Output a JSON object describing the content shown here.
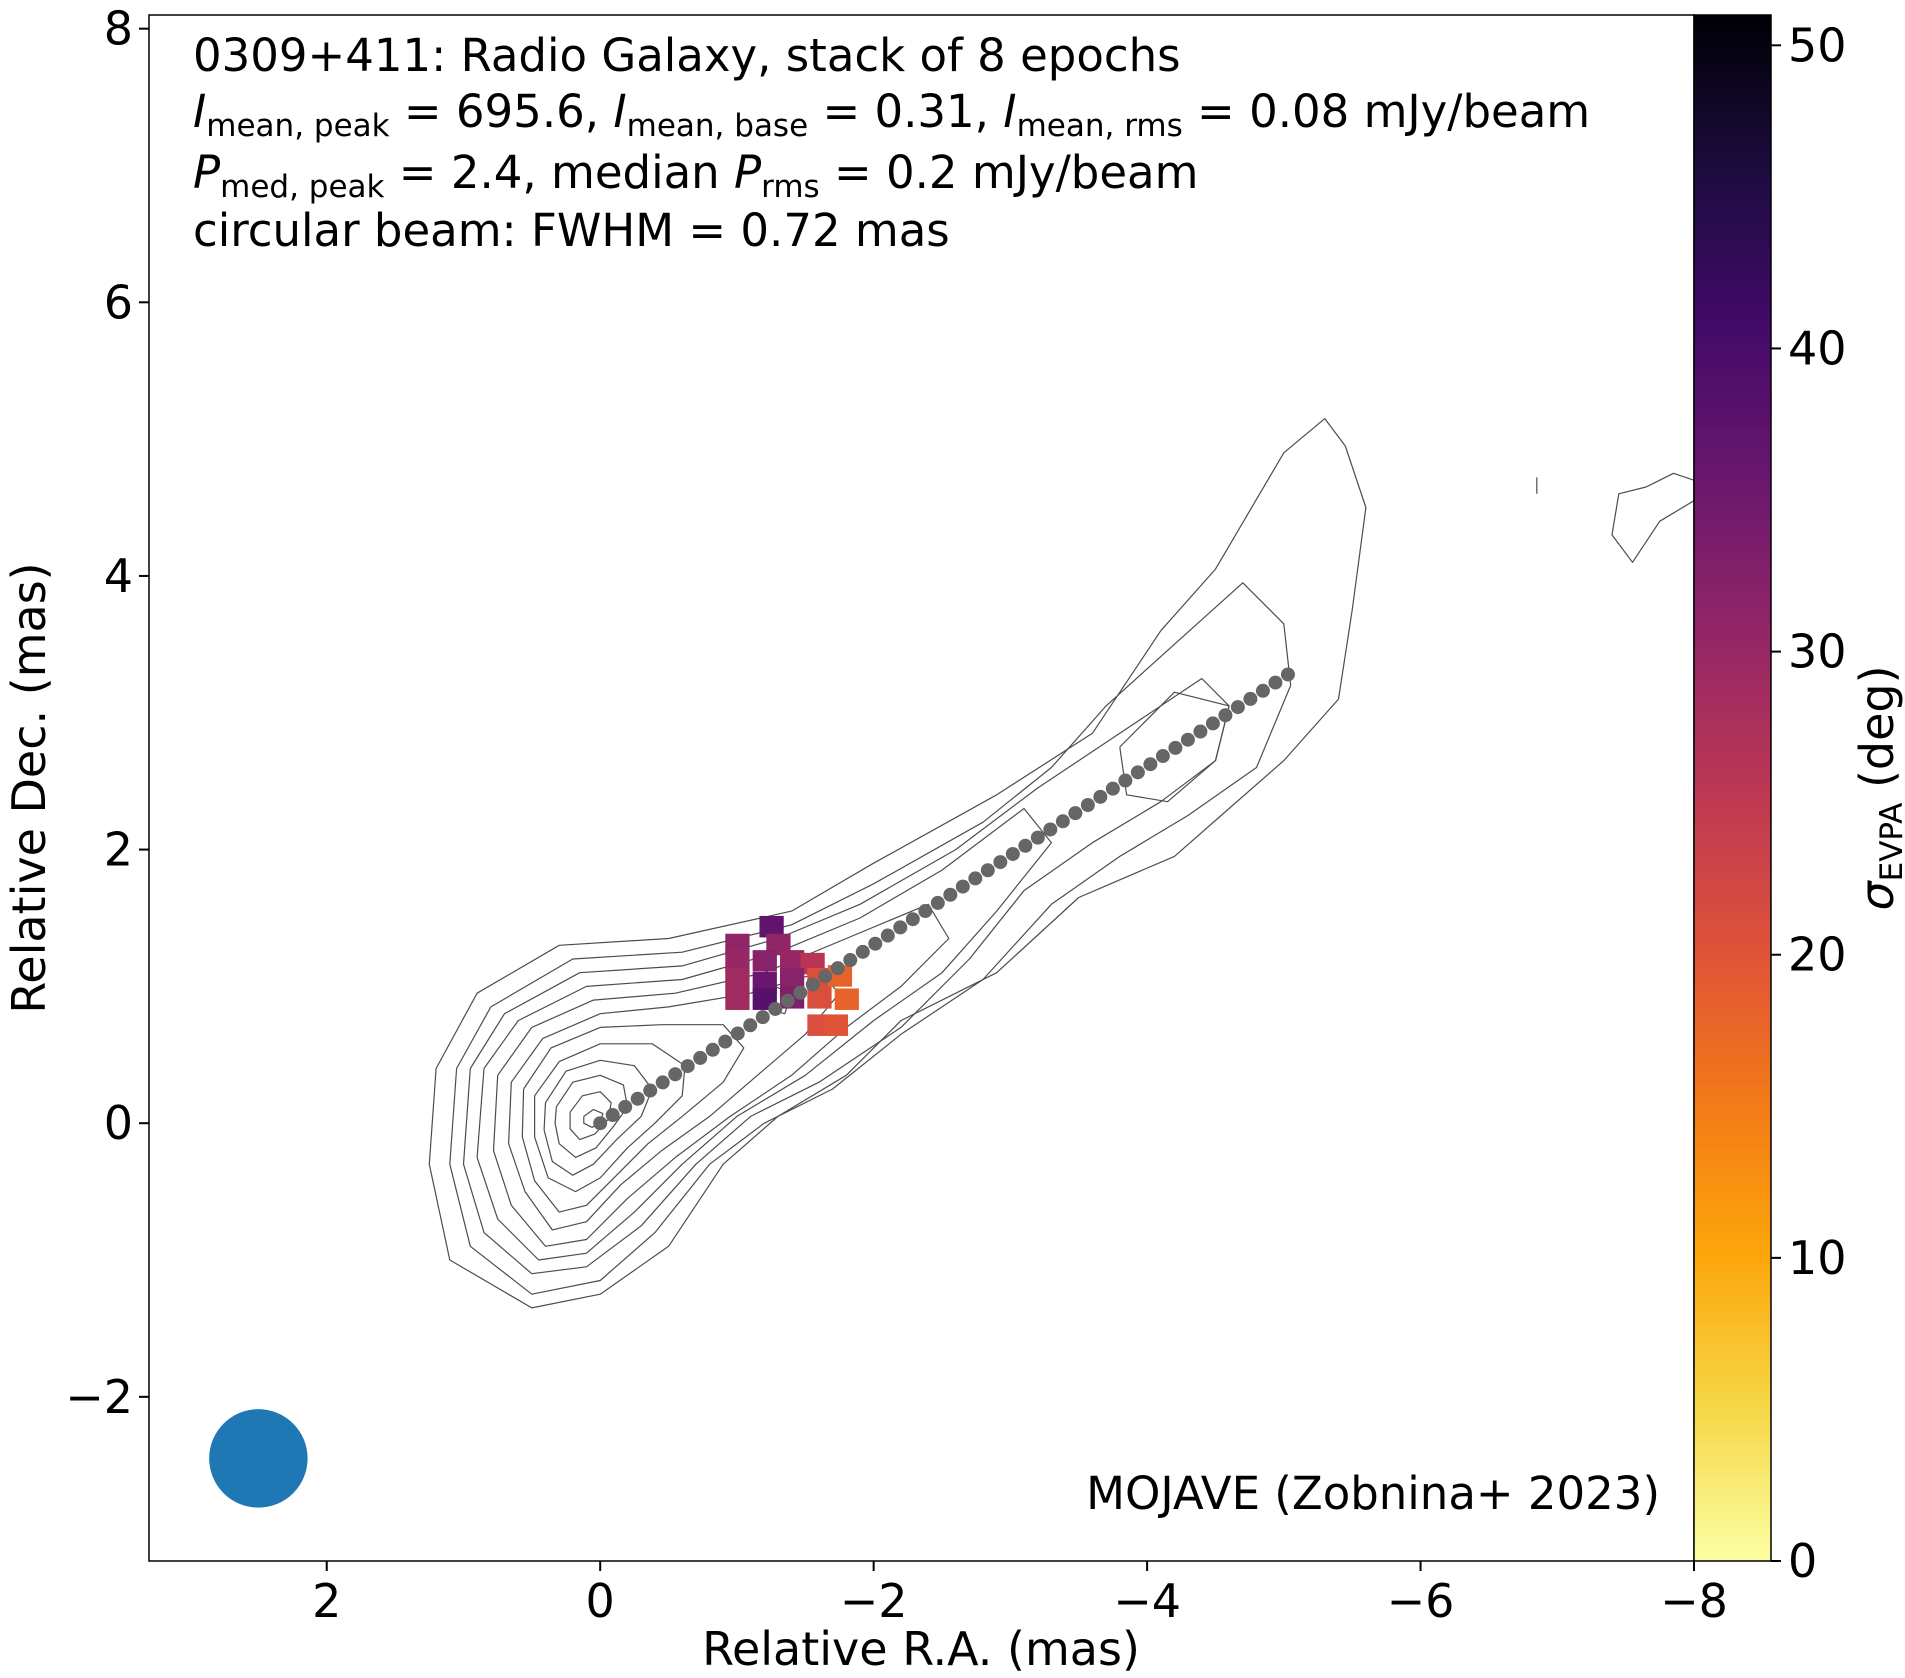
{
  "chart_data": {
    "type": "contour+image",
    "title_lines": [
      "0309+411: Radio Galaxy, stack of 8 epochs",
      {
        "parts": [
          {
            "sym": "I",
            "sub": "mean, peak",
            "rest": " = 695.6, "
          },
          {
            "sym": "I",
            "sub": "mean, base",
            "rest": " = 0.31, "
          },
          {
            "sym": "I",
            "sub": "mean, rms",
            "rest": " = 0.08 mJy/beam"
          }
        ]
      },
      {
        "parts": [
          {
            "sym": "P",
            "sub": "med, peak",
            "rest": " = 2.4, median "
          },
          {
            "sym": "P",
            "sub": "rms",
            "rest": " = 0.2 mJy/beam"
          }
        ]
      },
      "circular beam: FWHM = 0.72 mas"
    ],
    "credit": "MOJAVE (Zobnina+ 2023)",
    "xlabel": "Relative R.A. (mas)",
    "ylabel": "Relative Dec. (mas)",
    "xlim": [
      3.3,
      -8.0
    ],
    "ylim": [
      -3.2,
      8.1
    ],
    "x_ticks": [
      2,
      0,
      -2,
      -4,
      -6,
      -8
    ],
    "y_ticks": [
      -2,
      0,
      2,
      4,
      6,
      8
    ],
    "x_tick_labels": [
      "2",
      "0",
      "−2",
      "−4",
      "−6",
      "−8"
    ],
    "y_tick_labels": [
      "−2",
      "0",
      "2",
      "4",
      "6",
      "8"
    ],
    "colorbar": {
      "label_symbol": "σ",
      "label_sub": "EVPA",
      "label_rest": " (deg)",
      "range": [
        0,
        51
      ],
      "ticks": [
        0,
        10,
        20,
        30,
        40,
        50
      ],
      "tick_labels": [
        "0",
        "10",
        "20",
        "30",
        "40",
        "50"
      ],
      "colormap": "inferno_r",
      "stops": [
        "#fcffa4",
        "#f6d746",
        "#fca50a",
        "#f37819",
        "#dd513a",
        "#bc3754",
        "#932667",
        "#6a176e",
        "#420a68",
        "#1c0c3f",
        "#000004"
      ]
    },
    "ridge_line": {
      "color": "#666666",
      "start": [
        0,
        0
      ],
      "end": [
        -5.03,
        3.28
      ],
      "n_points": 56
    },
    "beam": {
      "ra": 2.5,
      "dec": -2.45,
      "diameter": 0.72,
      "color": "#1f77b4"
    },
    "evpa_pixels": [
      {
        "ra": -1.25,
        "dec": 1.44,
        "sigma": 37
      },
      {
        "ra": -1.0,
        "dec": 1.31,
        "sigma": 31
      },
      {
        "ra": -1.3,
        "dec": 1.31,
        "sigma": 31
      },
      {
        "ra": -1.0,
        "dec": 1.19,
        "sigma": 30
      },
      {
        "ra": -1.2,
        "dec": 1.19,
        "sigma": 32
      },
      {
        "ra": -1.4,
        "dec": 1.19,
        "sigma": 30
      },
      {
        "ra": -1.55,
        "dec": 1.17,
        "sigma": 26
      },
      {
        "ra": -1.0,
        "dec": 1.06,
        "sigma": 29
      },
      {
        "ra": -1.2,
        "dec": 1.03,
        "sigma": 36
      },
      {
        "ra": -1.4,
        "dec": 1.06,
        "sigma": 32
      },
      {
        "ra": -1.6,
        "dec": 1.06,
        "sigma": 21
      },
      {
        "ra": -1.75,
        "dec": 1.08,
        "sigma": 18
      },
      {
        "ra": -1.0,
        "dec": 0.91,
        "sigma": 29
      },
      {
        "ra": -1.2,
        "dec": 0.91,
        "sigma": 38
      },
      {
        "ra": -1.4,
        "dec": 0.92,
        "sigma": 33
      },
      {
        "ra": -1.6,
        "dec": 0.92,
        "sigma": 21
      },
      {
        "ra": -1.8,
        "dec": 0.91,
        "sigma": 18
      },
      {
        "ra": -1.6,
        "dec": 0.72,
        "sigma": 21
      },
      {
        "ra": -1.72,
        "dec": 0.72,
        "sigma": 20
      }
    ],
    "contours": [
      [
        [
          1.2,
          0.4
        ],
        [
          0.9,
          0.95
        ],
        [
          0.3,
          1.3
        ],
        [
          -0.5,
          1.35
        ],
        [
          -1.4,
          1.55
        ],
        [
          -2.0,
          1.9
        ],
        [
          -2.9,
          2.4
        ],
        [
          -3.6,
          2.85
        ],
        [
          -4.1,
          3.6
        ],
        [
          -4.5,
          4.05
        ],
        [
          -5.0,
          4.9
        ],
        [
          -5.3,
          5.15
        ],
        [
          -5.45,
          4.95
        ],
        [
          -5.6,
          4.5
        ],
        [
          -5.5,
          3.75
        ],
        [
          -5.4,
          3.1
        ],
        [
          -5.0,
          2.65
        ],
        [
          -4.6,
          2.3
        ],
        [
          -4.2,
          1.95
        ],
        [
          -3.5,
          1.65
        ],
        [
          -2.9,
          1.1
        ],
        [
          -2.2,
          0.75
        ],
        [
          -1.8,
          0.35
        ],
        [
          -1.3,
          0.05
        ],
        [
          -0.9,
          -0.3
        ],
        [
          -0.5,
          -0.9
        ],
        [
          0.0,
          -1.25
        ],
        [
          0.5,
          -1.35
        ],
        [
          1.1,
          -1.0
        ],
        [
          1.25,
          -0.3
        ],
        [
          1.2,
          0.4
        ]
      ],
      [
        [
          1.05,
          0.4
        ],
        [
          0.8,
          0.85
        ],
        [
          0.2,
          1.2
        ],
        [
          -0.6,
          1.25
        ],
        [
          -1.4,
          1.45
        ],
        [
          -2.0,
          1.75
        ],
        [
          -2.8,
          2.2
        ],
        [
          -3.3,
          2.6
        ],
        [
          -3.7,
          3.05
        ],
        [
          -4.2,
          3.5
        ],
        [
          -4.7,
          3.95
        ],
        [
          -5.0,
          3.65
        ],
        [
          -5.05,
          3.2
        ],
        [
          -4.8,
          2.6
        ],
        [
          -4.3,
          2.25
        ],
        [
          -3.8,
          1.95
        ],
        [
          -3.3,
          1.6
        ],
        [
          -2.8,
          1.05
        ],
        [
          -2.2,
          0.65
        ],
        [
          -1.7,
          0.25
        ],
        [
          -1.2,
          0.0
        ],
        [
          -0.8,
          -0.3
        ],
        [
          -0.4,
          -0.8
        ],
        [
          0.0,
          -1.15
        ],
        [
          0.5,
          -1.25
        ],
        [
          0.95,
          -0.9
        ],
        [
          1.1,
          -0.3
        ],
        [
          1.05,
          0.4
        ]
      ],
      [
        [
          0.95,
          0.4
        ],
        [
          0.7,
          0.8
        ],
        [
          0.15,
          1.1
        ],
        [
          -0.6,
          1.15
        ],
        [
          -1.3,
          1.35
        ],
        [
          -1.9,
          1.6
        ],
        [
          -2.6,
          2.0
        ],
        [
          -3.2,
          2.45
        ],
        [
          -3.8,
          2.85
        ],
        [
          -4.4,
          3.25
        ],
        [
          -4.6,
          3.05
        ],
        [
          -4.5,
          2.65
        ],
        [
          -4.1,
          2.35
        ],
        [
          -3.6,
          2.05
        ],
        [
          -3.1,
          1.7
        ],
        [
          -2.7,
          1.2
        ],
        [
          -2.2,
          0.7
        ],
        [
          -1.6,
          0.3
        ],
        [
          -1.1,
          0.05
        ],
        [
          -0.7,
          -0.3
        ],
        [
          -0.3,
          -0.75
        ],
        [
          0.1,
          -1.05
        ],
        [
          0.5,
          -1.1
        ],
        [
          0.85,
          -0.8
        ],
        [
          1.0,
          -0.3
        ],
        [
          0.95,
          0.4
        ]
      ],
      [
        [
          0.85,
          0.4
        ],
        [
          0.6,
          0.75
        ],
        [
          0.1,
          1.0
        ],
        [
          -0.6,
          1.05
        ],
        [
          -1.3,
          1.25
        ],
        [
          -1.9,
          1.5
        ],
        [
          -2.5,
          1.85
        ],
        [
          -3.1,
          2.3
        ],
        [
          -3.3,
          2.05
        ],
        [
          -2.9,
          1.55
        ],
        [
          -2.5,
          1.1
        ],
        [
          -2.0,
          0.75
        ],
        [
          -1.5,
          0.35
        ],
        [
          -1.0,
          0.05
        ],
        [
          -0.6,
          -0.3
        ],
        [
          -0.25,
          -0.65
        ],
        [
          0.1,
          -0.95
        ],
        [
          0.45,
          -1.0
        ],
        [
          0.75,
          -0.7
        ],
        [
          0.9,
          -0.25
        ],
        [
          0.85,
          0.4
        ]
      ],
      [
        [
          0.75,
          0.35
        ],
        [
          0.5,
          0.7
        ],
        [
          0.05,
          0.9
        ],
        [
          -0.55,
          0.95
        ],
        [
          -1.2,
          1.1
        ],
        [
          -1.8,
          1.35
        ],
        [
          -2.4,
          1.6
        ],
        [
          -2.55,
          1.35
        ],
        [
          -2.2,
          1.0
        ],
        [
          -1.8,
          0.7
        ],
        [
          -1.4,
          0.35
        ],
        [
          -0.95,
          0.05
        ],
        [
          -0.55,
          -0.25
        ],
        [
          -0.2,
          -0.55
        ],
        [
          0.1,
          -0.85
        ],
        [
          0.4,
          -0.9
        ],
        [
          0.65,
          -0.6
        ],
        [
          0.78,
          -0.2
        ],
        [
          0.75,
          0.35
        ]
      ],
      [
        [
          0.65,
          0.3
        ],
        [
          0.42,
          0.62
        ],
        [
          0.0,
          0.8
        ],
        [
          -0.5,
          0.85
        ],
        [
          -1.1,
          0.95
        ],
        [
          -1.6,
          1.1
        ],
        [
          -1.75,
          0.95
        ],
        [
          -1.5,
          0.65
        ],
        [
          -1.15,
          0.35
        ],
        [
          -0.8,
          0.05
        ],
        [
          -0.45,
          -0.2
        ],
        [
          -0.15,
          -0.45
        ],
        [
          0.1,
          -0.72
        ],
        [
          0.35,
          -0.78
        ],
        [
          0.55,
          -0.5
        ],
        [
          0.67,
          -0.15
        ],
        [
          0.65,
          0.3
        ]
      ],
      [
        [
          0.56,
          0.25
        ],
        [
          0.36,
          0.55
        ],
        [
          0.0,
          0.7
        ],
        [
          -0.45,
          0.72
        ],
        [
          -0.9,
          0.72
        ],
        [
          -1.05,
          0.55
        ],
        [
          -0.9,
          0.3
        ],
        [
          -0.6,
          0.05
        ],
        [
          -0.35,
          -0.15
        ],
        [
          -0.1,
          -0.4
        ],
        [
          0.1,
          -0.6
        ],
        [
          0.3,
          -0.65
        ],
        [
          0.48,
          -0.42
        ],
        [
          0.57,
          -0.1
        ],
        [
          0.56,
          0.25
        ]
      ],
      [
        [
          0.48,
          0.2
        ],
        [
          0.3,
          0.45
        ],
        [
          0.0,
          0.58
        ],
        [
          -0.38,
          0.58
        ],
        [
          -0.62,
          0.42
        ],
        [
          -0.6,
          0.2
        ],
        [
          -0.4,
          0.0
        ],
        [
          -0.2,
          -0.18
        ],
        [
          0.0,
          -0.4
        ],
        [
          0.18,
          -0.5
        ],
        [
          0.38,
          -0.4
        ],
        [
          0.48,
          -0.1
        ],
        [
          0.48,
          0.2
        ]
      ],
      [
        [
          0.4,
          0.15
        ],
        [
          0.25,
          0.38
        ],
        [
          0.0,
          0.46
        ],
        [
          -0.25,
          0.42
        ],
        [
          -0.38,
          0.25
        ],
        [
          -0.3,
          0.05
        ],
        [
          -0.12,
          -0.12
        ],
        [
          0.05,
          -0.3
        ],
        [
          0.2,
          -0.38
        ],
        [
          0.35,
          -0.28
        ],
        [
          0.41,
          -0.05
        ],
        [
          0.4,
          0.15
        ]
      ],
      [
        [
          0.32,
          0.12
        ],
        [
          0.2,
          0.3
        ],
        [
          0.0,
          0.35
        ],
        [
          -0.17,
          0.28
        ],
        [
          -0.2,
          0.12
        ],
        [
          -0.1,
          -0.02
        ],
        [
          0.03,
          -0.18
        ],
        [
          0.18,
          -0.25
        ],
        [
          0.3,
          -0.15
        ],
        [
          0.33,
          0.0
        ],
        [
          0.32,
          0.12
        ]
      ],
      [
        [
          0.22,
          0.08
        ],
        [
          0.13,
          0.2
        ],
        [
          0.0,
          0.23
        ],
        [
          -0.08,
          0.15
        ],
        [
          -0.06,
          0.03
        ],
        [
          0.04,
          -0.08
        ],
        [
          0.15,
          -0.12
        ],
        [
          0.22,
          -0.04
        ],
        [
          0.22,
          0.08
        ]
      ],
      [
        [
          0.12,
          0.05
        ],
        [
          0.05,
          0.1
        ],
        [
          -0.02,
          0.07
        ],
        [
          0.0,
          0.0
        ],
        [
          0.06,
          -0.03
        ],
        [
          0.12,
          0.0
        ],
        [
          0.12,
          0.05
        ]
      ],
      [
        [
          -3.8,
          2.75
        ],
        [
          -4.2,
          3.15
        ],
        [
          -4.6,
          3.05
        ],
        [
          -4.5,
          2.65
        ],
        [
          -4.15,
          2.35
        ],
        [
          -3.85,
          2.4
        ],
        [
          -3.8,
          2.75
        ]
      ],
      [
        [
          -1.15,
          1.05
        ],
        [
          -1.4,
          0.95
        ],
        [
          -1.35,
          0.8
        ],
        [
          -1.15,
          0.85
        ],
        [
          -1.15,
          1.05
        ]
      ],
      [
        [
          -7.65,
          4.65
        ],
        [
          -7.85,
          4.75
        ],
        [
          -8.0,
          4.7
        ],
        [
          -8.0,
          4.55
        ],
        [
          -7.75,
          4.4
        ],
        [
          -7.55,
          4.1
        ],
        [
          -7.4,
          4.3
        ],
        [
          -7.45,
          4.6
        ],
        [
          -7.65,
          4.65
        ]
      ],
      [
        [
          -6.85,
          4.6
        ],
        [
          -6.85,
          4.72
        ]
      ]
    ]
  }
}
